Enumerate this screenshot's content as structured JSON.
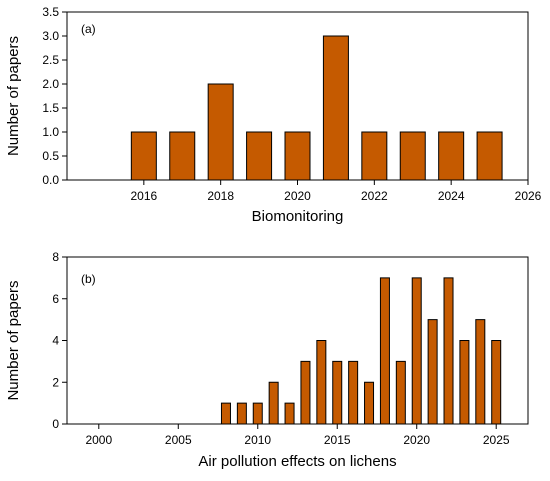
{
  "colors": {
    "bar_fill": "#c55a00",
    "bar_stroke": "#000000",
    "axis": "#000000",
    "background": "#ffffff"
  },
  "chart_data": [
    {
      "type": "bar",
      "panel_label": "(a)",
      "xlabel": "Biomonitoring",
      "ylabel": "Number of papers",
      "x": [
        2016,
        2017,
        2018,
        2019,
        2020,
        2021,
        2022,
        2023,
        2024,
        2025
      ],
      "values": [
        1,
        1,
        2,
        1,
        1,
        3,
        1,
        1,
        1,
        1
      ],
      "xlim": [
        2014,
        2026
      ],
      "ylim": [
        0,
        3.5
      ],
      "xticks": [
        2016,
        2018,
        2020,
        2022,
        2024,
        2026
      ],
      "yticks": [
        0.0,
        0.5,
        1.0,
        1.5,
        2.0,
        2.5,
        3.0,
        3.5
      ],
      "xtick_labels": [
        "2016",
        "2018",
        "2020",
        "2022",
        "2024",
        "2026"
      ],
      "ytick_labels": [
        "0.0",
        "0.5",
        "1.0",
        "1.5",
        "2.0",
        "2.5",
        "3.0",
        "3.5"
      ],
      "grid": false
    },
    {
      "type": "bar",
      "panel_label": "(b)",
      "xlabel": "Air pollution effects on lichens",
      "ylabel": "Number of papers",
      "x": [
        2008,
        2009,
        2010,
        2011,
        2012,
        2013,
        2014,
        2015,
        2016,
        2017,
        2018,
        2019,
        2020,
        2021,
        2022,
        2023,
        2024,
        2025
      ],
      "values": [
        1,
        1,
        1,
        2,
        1,
        3,
        4,
        3,
        3,
        2,
        7,
        3,
        7,
        5,
        7,
        4,
        5,
        4
      ],
      "xlim": [
        1998,
        2027
      ],
      "ylim": [
        0,
        8
      ],
      "xticks": [
        2000,
        2005,
        2010,
        2015,
        2020,
        2025
      ],
      "yticks": [
        0,
        2,
        4,
        6,
        8
      ],
      "xtick_labels": [
        "2000",
        "2005",
        "2010",
        "2015",
        "2020",
        "2025"
      ],
      "ytick_labels": [
        "0",
        "2",
        "4",
        "6",
        "8"
      ],
      "grid": false
    }
  ]
}
